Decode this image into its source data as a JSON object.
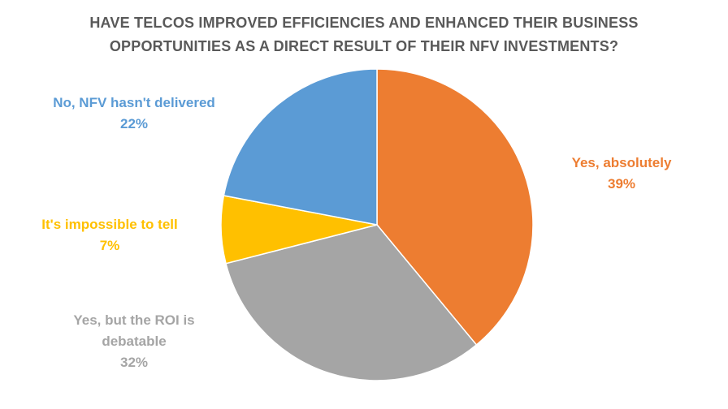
{
  "chart_data": {
    "type": "pie",
    "title": "HAVE TELCOS IMPROVED EFFICIENCIES AND ENHANCED THEIR BUSINESS OPPORTUNITIES AS A DIRECT RESULT OF THEIR NFV INVESTMENTS?",
    "title_lines": [
      "HAVE TELCOS IMPROVED EFFICIENCIES AND ENHANCED THEIR BUSINESS",
      "OPPORTUNITIES AS A DIRECT RESULT OF THEIR NFV INVESTMENTS?"
    ],
    "categories": [
      "Yes, absolutely",
      "Yes, but the ROI is debatable",
      "It's impossible to tell",
      "No, NFV hasn't delivered"
    ],
    "values": [
      39,
      32,
      7,
      22
    ],
    "value_labels": [
      "39%",
      "32%",
      "7%",
      "22%"
    ],
    "colors": [
      "#ED7D31",
      "#A5A5A5",
      "#FFC000",
      "#5B9BD5"
    ],
    "label_lines": {
      "yes": [
        "Yes, absolutely"
      ],
      "roi": [
        "Yes, but the ROI is",
        "debatable"
      ],
      "imp": [
        "It's impossible to tell"
      ],
      "no": [
        "No, NFV hasn't delivered"
      ]
    },
    "start_angle": "12 o'clock",
    "direction": "clockwise",
    "legend": "none (data labels beside slices)"
  }
}
